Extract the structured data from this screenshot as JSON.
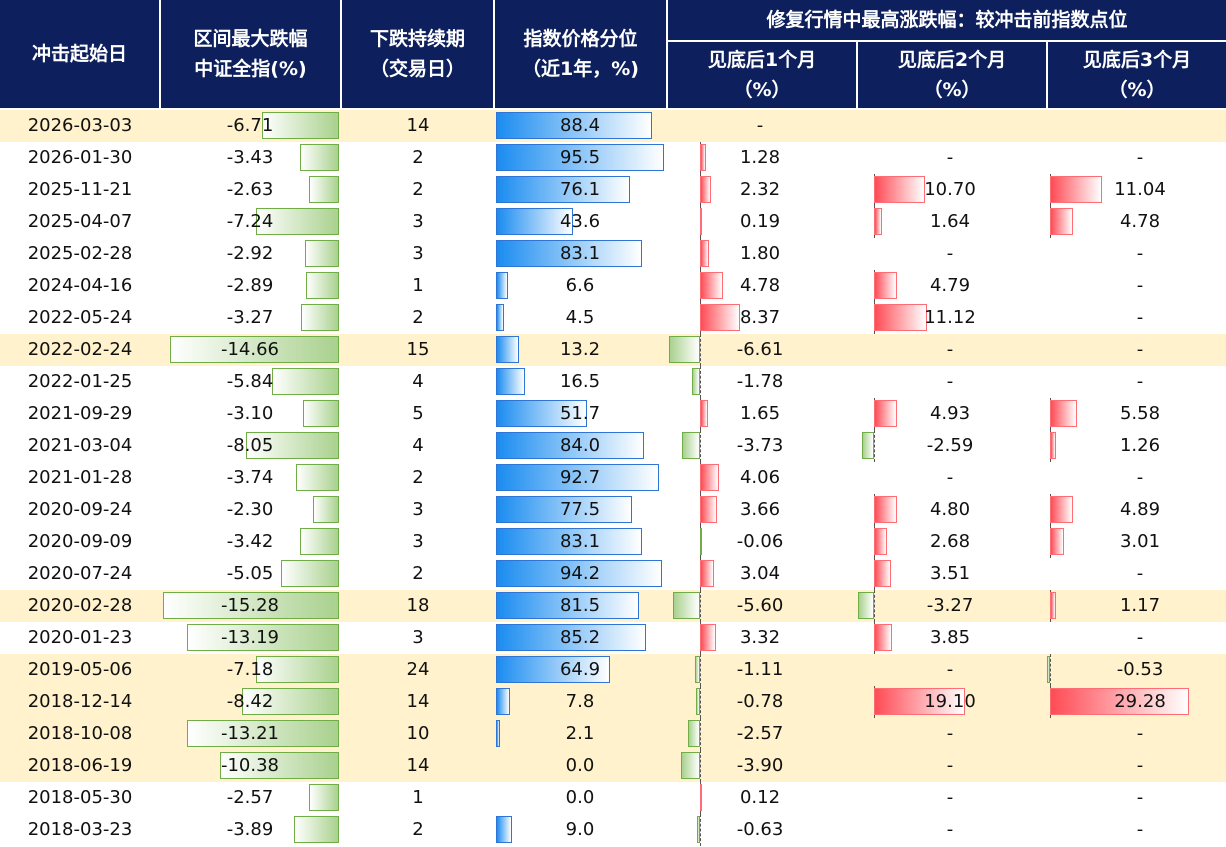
{
  "header": {
    "date": "冲击起始日",
    "drawdown": [
      "区间最大跌幅",
      "中证全指(%)"
    ],
    "duration": [
      "下跌持续期",
      "（交易日）"
    ],
    "percentile": [
      "指数价格分位",
      "（近1年，%)"
    ],
    "repair_group": "修复行情中最高涨跌幅：较冲击前指数点位",
    "m1": [
      "见底后1个月",
      "（%）"
    ],
    "m2": [
      "见底后2个月",
      "（%）"
    ],
    "m3": [
      "见底后3个月",
      "（%）"
    ]
  },
  "colors": {
    "header_bg": "#0d1f5c",
    "highlight_row": "#fff2cc",
    "negative_bar": "#a9d18e",
    "percentile_bar": "#1a8cf0",
    "positive_bar": "#ff4b55"
  },
  "rows": [
    {
      "date": "2026-03-03",
      "drawdown": "-6.71",
      "days": "14",
      "pct": "88.4",
      "m1": "-",
      "m2": "",
      "m3": "",
      "hl": true
    },
    {
      "date": "2026-01-30",
      "drawdown": "-3.43",
      "days": "2",
      "pct": "95.5",
      "m1": "1.28",
      "m2": "-",
      "m3": "-",
      "hl": false
    },
    {
      "date": "2025-11-21",
      "drawdown": "-2.63",
      "days": "2",
      "pct": "76.1",
      "m1": "2.32",
      "m2": "10.70",
      "m3": "11.04",
      "hl": false
    },
    {
      "date": "2025-04-07",
      "drawdown": "-7.24",
      "days": "3",
      "pct": "43.6",
      "m1": "0.19",
      "m2": "1.64",
      "m3": "4.78",
      "hl": false
    },
    {
      "date": "2025-02-28",
      "drawdown": "-2.92",
      "days": "3",
      "pct": "83.1",
      "m1": "1.80",
      "m2": "-",
      "m3": "-",
      "hl": false
    },
    {
      "date": "2024-04-16",
      "drawdown": "-2.89",
      "days": "1",
      "pct": "6.6",
      "m1": "4.78",
      "m2": "4.79",
      "m3": "-",
      "hl": false
    },
    {
      "date": "2022-05-24",
      "drawdown": "-3.27",
      "days": "2",
      "pct": "4.5",
      "m1": "8.37",
      "m2": "11.12",
      "m3": "-",
      "hl": false
    },
    {
      "date": "2022-02-24",
      "drawdown": "-14.66",
      "days": "15",
      "pct": "13.2",
      "m1": "-6.61",
      "m2": "-",
      "m3": "-",
      "hl": true
    },
    {
      "date": "2022-01-25",
      "drawdown": "-5.84",
      "days": "4",
      "pct": "16.5",
      "m1": "-1.78",
      "m2": "-",
      "m3": "-",
      "hl": false
    },
    {
      "date": "2021-09-29",
      "drawdown": "-3.10",
      "days": "5",
      "pct": "51.7",
      "m1": "1.65",
      "m2": "4.93",
      "m3": "5.58",
      "hl": false
    },
    {
      "date": "2021-03-04",
      "drawdown": "-8.05",
      "days": "4",
      "pct": "84.0",
      "m1": "-3.73",
      "m2": "-2.59",
      "m3": "1.26",
      "hl": false
    },
    {
      "date": "2021-01-28",
      "drawdown": "-3.74",
      "days": "2",
      "pct": "92.7",
      "m1": "4.06",
      "m2": "-",
      "m3": "-",
      "hl": false
    },
    {
      "date": "2020-09-24",
      "drawdown": "-2.30",
      "days": "3",
      "pct": "77.5",
      "m1": "3.66",
      "m2": "4.80",
      "m3": "4.89",
      "hl": false
    },
    {
      "date": "2020-09-09",
      "drawdown": "-3.42",
      "days": "3",
      "pct": "83.1",
      "m1": "-0.06",
      "m2": "2.68",
      "m3": "3.01",
      "hl": false
    },
    {
      "date": "2020-07-24",
      "drawdown": "-5.05",
      "days": "2",
      "pct": "94.2",
      "m1": "3.04",
      "m2": "3.51",
      "m3": "-",
      "hl": false
    },
    {
      "date": "2020-02-28",
      "drawdown": "-15.28",
      "days": "18",
      "pct": "81.5",
      "m1": "-5.60",
      "m2": "-3.27",
      "m3": "1.17",
      "hl": true
    },
    {
      "date": "2020-01-23",
      "drawdown": "-13.19",
      "days": "3",
      "pct": "85.2",
      "m1": "3.32",
      "m2": "3.85",
      "m3": "-",
      "hl": false
    },
    {
      "date": "2019-05-06",
      "drawdown": "-7.18",
      "days": "24",
      "pct": "64.9",
      "m1": "-1.11",
      "m2": "-",
      "m3": "-0.53",
      "hl": true
    },
    {
      "date": "2018-12-14",
      "drawdown": "-8.42",
      "days": "14",
      "pct": "7.8",
      "m1": "-0.78",
      "m2": "19.10",
      "m3": "29.28",
      "hl": true
    },
    {
      "date": "2018-10-08",
      "drawdown": "-13.21",
      "days": "10",
      "pct": "2.1",
      "m1": "-2.57",
      "m2": "-",
      "m3": "-",
      "hl": true
    },
    {
      "date": "2018-06-19",
      "drawdown": "-10.38",
      "days": "14",
      "pct": "0.0",
      "m1": "-3.90",
      "m2": "-",
      "m3": "-",
      "hl": true
    },
    {
      "date": "2018-05-30",
      "drawdown": "-2.57",
      "days": "1",
      "pct": "0.0",
      "m1": "0.12",
      "m2": "-",
      "m3": "-",
      "hl": false
    },
    {
      "date": "2018-03-23",
      "drawdown": "-3.89",
      "days": "2",
      "pct": "9.0",
      "m1": "-0.63",
      "m2": "-",
      "m3": "-",
      "hl": false
    }
  ]
}
